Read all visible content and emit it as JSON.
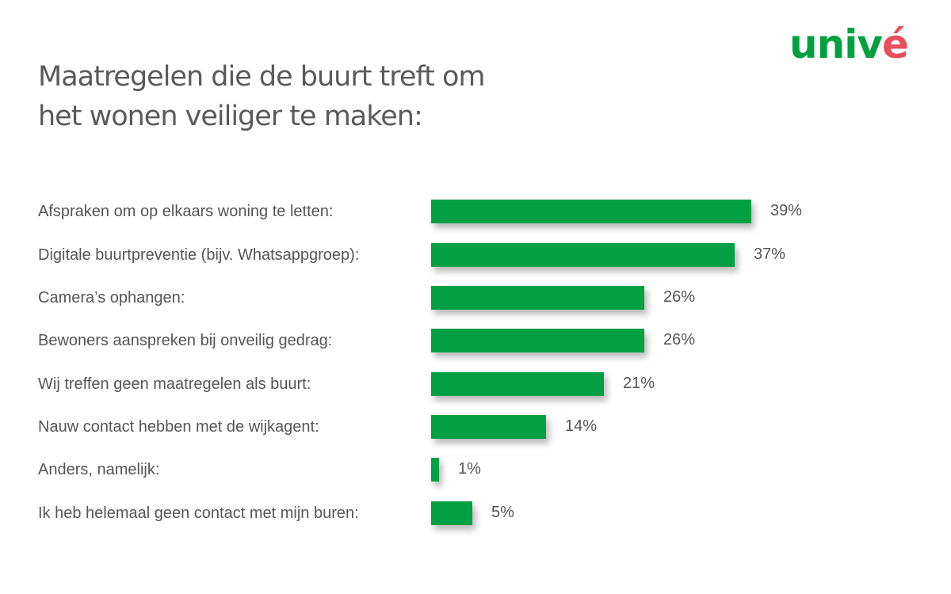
{
  "header": {
    "title_line1": "Maatregelen die de buurt treft om",
    "title_line2": "het wonen veiliger te maken:"
  },
  "logo": {
    "text_green": "univ",
    "text_red": "é",
    "brand_green": "#00a040",
    "brand_red": "#e8505b"
  },
  "colors": {
    "bar": "#00a043",
    "text": "#555555",
    "title": "#5a5a5a"
  },
  "chart_data": {
    "type": "bar",
    "orientation": "horizontal",
    "title": "Maatregelen die de buurt treft om het wonen veiliger te maken:",
    "xlabel": "",
    "ylabel": "",
    "grid": false,
    "legend": null,
    "unit": "%",
    "categories": [
      "Afspraken om op elkaars woning te letten:",
      "Digitale buurtpreventie (bijv. Whatsappgroep):",
      "Camera’s ophangen:",
      "Bewoners aanspreken bij onveilig gedrag:",
      "Wij treffen geen maatregelen als buurt:",
      "Nauw contact hebben met de wijkagent:",
      "Anders, namelijk:",
      "Ik heb helemaal geen contact met mijn buren:"
    ],
    "values": [
      39,
      37,
      26,
      26,
      21,
      14,
      1,
      5
    ],
    "value_labels": [
      "39%",
      "37%",
      "26%",
      "26%",
      "21%",
      "14%",
      "1%",
      "5%"
    ]
  }
}
